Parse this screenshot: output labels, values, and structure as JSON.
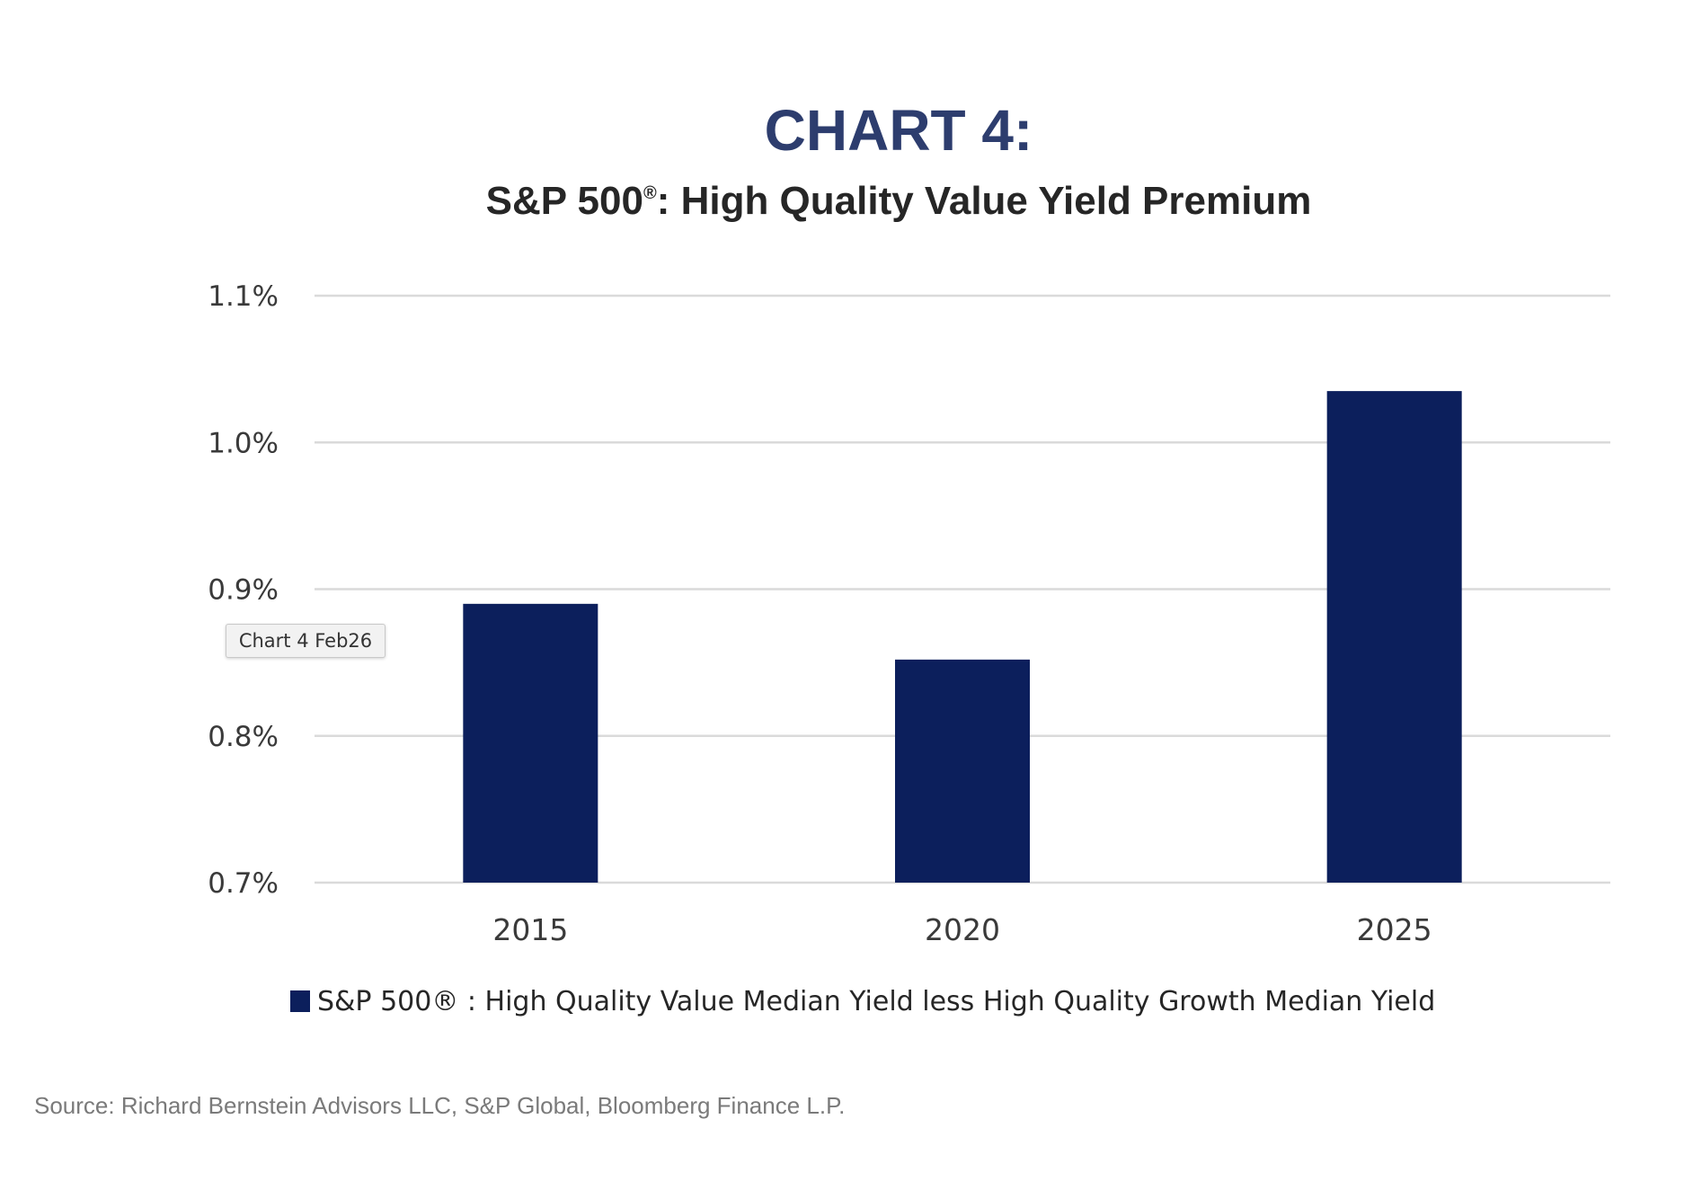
{
  "chart_data": {
    "type": "bar",
    "title": "CHART 4:",
    "subtitle_main": "S&P 500",
    "subtitle_mark": "®",
    "subtitle_rest": ": High Quality Value Yield Premium",
    "categories": [
      "2015",
      "2020",
      "2025"
    ],
    "series": [
      {
        "name": "S&P 500® : High Quality Value Median Yield less High Quality Growth Median Yield",
        "values": [
          0.89,
          0.852,
          1.035
        ]
      }
    ],
    "ylim": [
      0.7,
      1.1
    ],
    "y_ticks": [
      0.7,
      0.8,
      0.9,
      1.0,
      1.1
    ],
    "y_tick_labels": [
      "0.7%",
      "0.8%",
      "0.9%",
      "1.0%",
      "1.1%"
    ],
    "xlabel": "",
    "ylabel": "",
    "grid": true,
    "legend_position": "bottom",
    "source": "Source: Richard Bernstein Advisors LLC, S&P Global, Bloomberg Finance L.P."
  },
  "tooltip": {
    "text": "Chart 4 Feb26"
  },
  "colors": {
    "bar": "#0c1f5c",
    "title": "#2d3d6e",
    "subtitle": "#262626",
    "grid": "#dadada",
    "tick_text": "#3a3a3a",
    "source_text": "#7a7a7a"
  }
}
